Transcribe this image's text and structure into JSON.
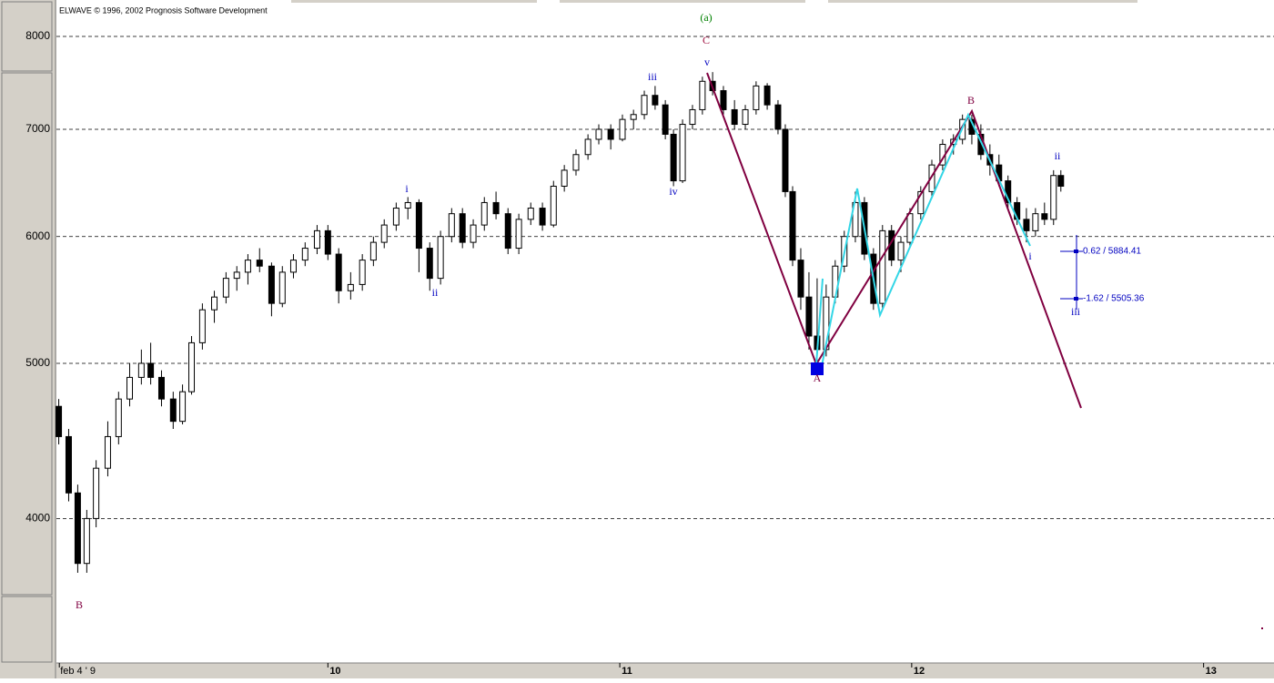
{
  "chart_data": {
    "type": "candlestick",
    "title": "ELWAVE © 1996, 2002 Prognosis Software Development",
    "log_scale": true,
    "grid": true,
    "ylim": [
      3250,
      8430
    ],
    "yticks": [
      4000,
      5000,
      6000,
      7000,
      8000
    ],
    "xlim": [
      9.07,
      13.21
    ],
    "xticks": [
      {
        "value": 9.08,
        "label": "feb 4 ' 9"
      },
      10,
      11,
      12,
      13
    ],
    "x": [
      9.078,
      9.112,
      9.143,
      9.174,
      9.206,
      9.246,
      9.283,
      9.321,
      9.361,
      9.393,
      9.43,
      9.47,
      9.502,
      9.533,
      9.57,
      9.611,
      9.651,
      9.688,
      9.726,
      9.766,
      9.807,
      9.844,
      9.882,
      9.922,
      9.963,
      10.0,
      10.037,
      10.078,
      10.118,
      10.156,
      10.193,
      10.234,
      10.274,
      10.312,
      10.349,
      10.386,
      10.424,
      10.461,
      10.498,
      10.536,
      10.576,
      10.617,
      10.654,
      10.695,
      10.735,
      10.773,
      10.81,
      10.85,
      10.891,
      10.928,
      10.969,
      11.009,
      11.047,
      11.084,
      11.121,
      11.156,
      11.184,
      11.215,
      11.249,
      11.283,
      11.318,
      11.355,
      11.393,
      11.43,
      11.467,
      11.505,
      11.542,
      11.567,
      11.592,
      11.62,
      11.648,
      11.676,
      11.707,
      11.738,
      11.769,
      11.807,
      11.838,
      11.869,
      11.9,
      11.931,
      11.963,
      11.994,
      12.031,
      12.069,
      12.106,
      12.143,
      12.174,
      12.206,
      12.237,
      12.268,
      12.299,
      12.33,
      12.361,
      12.393,
      12.424,
      12.455,
      12.486,
      12.511
    ],
    "open": [
      4700,
      4500,
      4150,
      3750,
      4000,
      4300,
      4500,
      4750,
      4900,
      5000,
      4900,
      4750,
      4600,
      4800,
      5150,
      5400,
      5500,
      5650,
      5700,
      5800,
      5750,
      5450,
      5700,
      5800,
      5900,
      6050,
      5850,
      5550,
      5600,
      5800,
      5950,
      6100,
      6250,
      6300,
      5900,
      5650,
      6000,
      6200,
      5950,
      6100,
      6300,
      6200,
      5900,
      6150,
      6250,
      6100,
      6450,
      6600,
      6750,
      6900,
      7000,
      6900,
      7100,
      7150,
      7350,
      7250,
      6950,
      6500,
      7050,
      7200,
      7500,
      7400,
      7200,
      7050,
      7200,
      7450,
      7250,
      7000,
      6400,
      5800,
      5500,
      5200,
      5100,
      5500,
      5750,
      6000,
      6300,
      5850,
      5450,
      6050,
      5800,
      5950,
      6200,
      6400,
      6650,
      6850,
      6900,
      7100,
      6950,
      6750,
      6650,
      6500,
      6300,
      6150,
      6050,
      6200,
      6150,
      6550
    ],
    "high": [
      4750,
      4550,
      4200,
      4050,
      4350,
      4600,
      4800,
      5000,
      5100,
      5150,
      4950,
      4800,
      4850,
      5200,
      5450,
      5550,
      5700,
      5750,
      5850,
      5900,
      5780,
      5750,
      5850,
      5950,
      6100,
      6100,
      5900,
      5700,
      5850,
      6000,
      6150,
      6300,
      6350,
      6330,
      5950,
      6050,
      6250,
      6250,
      6150,
      6350,
      6400,
      6250,
      6200,
      6300,
      6300,
      6500,
      6650,
      6800,
      6950,
      7050,
      7050,
      7150,
      7200,
      7400,
      7450,
      7300,
      7000,
      7100,
      7250,
      7550,
      7600,
      7450,
      7300,
      7250,
      7500,
      7480,
      7300,
      7050,
      6450,
      5900,
      5700,
      5650,
      5600,
      5800,
      6050,
      6400,
      6350,
      5900,
      6100,
      6100,
      6000,
      6250,
      6450,
      6700,
      6900,
      6950,
      7150,
      7150,
      7050,
      6850,
      6750,
      6550,
      6350,
      6250,
      6250,
      6300,
      6600,
      6600
    ],
    "low": [
      4450,
      4100,
      3700,
      3700,
      3950,
      4250,
      4450,
      4700,
      4850,
      4850,
      4700,
      4550,
      4580,
      4780,
      5100,
      5300,
      5450,
      5550,
      5600,
      5700,
      5350,
      5420,
      5650,
      5750,
      5850,
      5800,
      5450,
      5480,
      5550,
      5750,
      5900,
      6050,
      6150,
      5700,
      5550,
      5600,
      5950,
      5900,
      5900,
      6050,
      6150,
      5850,
      5850,
      6100,
      6050,
      6080,
      6400,
      6550,
      6700,
      6850,
      6800,
      6880,
      7000,
      7100,
      7200,
      6900,
      6450,
      6480,
      7000,
      7150,
      7350,
      7150,
      7000,
      7000,
      7150,
      7200,
      6950,
      6350,
      5750,
      5400,
      5100,
      4950,
      5050,
      5450,
      5700,
      5950,
      5800,
      5400,
      5400,
      5750,
      5700,
      5900,
      6150,
      6350,
      6600,
      6750,
      6850,
      6850,
      6700,
      6550,
      6450,
      6250,
      6100,
      5950,
      6000,
      6100,
      6100,
      6400
    ],
    "close": [
      4500,
      4150,
      3750,
      4000,
      4300,
      4500,
      4750,
      4900,
      5000,
      4900,
      4750,
      4600,
      4800,
      5150,
      5400,
      5500,
      5650,
      5700,
      5800,
      5750,
      5450,
      5700,
      5800,
      5900,
      6050,
      5850,
      5550,
      5600,
      5800,
      5950,
      6100,
      6250,
      6300,
      5900,
      5650,
      6000,
      6200,
      5950,
      6100,
      6300,
      6200,
      5900,
      6150,
      6250,
      6100,
      6450,
      6600,
      6750,
      6900,
      7000,
      6900,
      7100,
      7150,
      7350,
      7250,
      6950,
      6500,
      7050,
      7200,
      7500,
      7400,
      7200,
      7050,
      7200,
      7450,
      7250,
      7000,
      6400,
      5800,
      5500,
      5200,
      5100,
      5500,
      5750,
      6000,
      6300,
      5850,
      5450,
      6050,
      5800,
      5950,
      6200,
      6400,
      6650,
      6850,
      6900,
      7100,
      6950,
      6750,
      6650,
      6500,
      6300,
      6150,
      6050,
      6200,
      6150,
      6550,
      6450
    ],
    "annotations": [
      "(a)",
      "C",
      "v",
      "iii",
      "iv",
      "i",
      "ii",
      "B",
      "A",
      "B",
      "ii",
      "i",
      "iii",
      "0.62 / 5884.41",
      "-1.62 / 5505.36"
    ]
  }
}
